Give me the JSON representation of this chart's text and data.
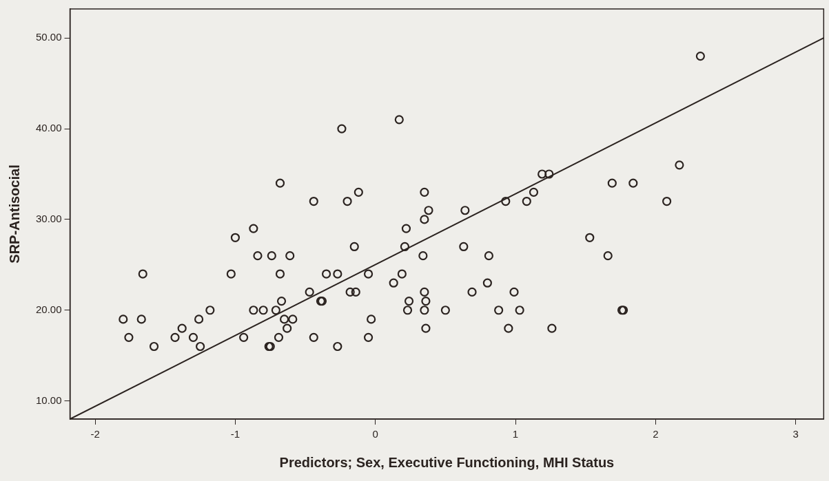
{
  "chart_data": {
    "type": "scatter",
    "xlabel": "Predictors; Sex, Executive Functioning, MHI Status",
    "ylabel": "SRP-Antisocial",
    "xlim": [
      -2.18,
      3.2
    ],
    "xticks": [
      -2,
      -1,
      0,
      1,
      2,
      3
    ],
    "ylim": [
      8,
      53.2
    ],
    "yticks": [
      {
        "value": 10,
        "label": "10.00"
      },
      {
        "value": 20,
        "label": "20.00"
      },
      {
        "value": 30,
        "label": "30.00"
      },
      {
        "value": 40,
        "label": "40.00"
      },
      {
        "value": 50,
        "label": "50.00"
      }
    ],
    "grid": false,
    "legend": false,
    "series": [
      {
        "type": "scatter",
        "marker": "circle",
        "color": "#2b2320",
        "x": [
          2.32,
          0.17,
          -0.24,
          2.17,
          1.19,
          1.24,
          -0.68,
          1.69,
          1.84,
          -0.12,
          0.35,
          1.13,
          -0.44,
          -0.2,
          0.93,
          1.08,
          2.08,
          0.38,
          0.64,
          0.35,
          -0.87,
          0.22,
          -1.0,
          1.53,
          -0.84,
          -0.74,
          -0.61,
          0.34,
          0.81,
          1.66,
          -0.15,
          0.21,
          0.63,
          -1.66,
          -1.03,
          -0.68,
          -0.35,
          -0.27,
          -0.05,
          0.19,
          0.13,
          0.8,
          -0.47,
          -0.18,
          -0.14,
          0.35,
          0.69,
          0.99,
          -0.67,
          -0.39,
          -0.38,
          0.24,
          0.36,
          -1.18,
          -0.87,
          -0.8,
          -0.71,
          0.23,
          0.35,
          0.5,
          0.88,
          1.03,
          1.76,
          1.77,
          -1.8,
          -1.67,
          -1.26,
          -0.65,
          -0.59,
          -0.03,
          -1.38,
          -0.63,
          0.36,
          0.95,
          1.26,
          -1.76,
          -1.43,
          -1.3,
          -0.94,
          -0.69,
          -0.44,
          -0.05,
          -1.58,
          -1.25,
          -0.76,
          -0.75,
          -0.27
        ],
        "values": [
          48,
          41,
          40,
          36,
          35,
          35,
          34,
          34,
          34,
          33,
          33,
          33,
          32,
          32,
          32,
          32,
          32,
          31,
          31,
          30,
          29,
          29,
          28,
          28,
          26,
          26,
          26,
          26,
          26,
          26,
          27,
          27,
          27,
          24,
          24,
          24,
          24,
          24,
          24,
          24,
          23,
          23,
          22,
          22,
          22,
          22,
          22,
          22,
          21,
          21,
          21,
          21,
          21,
          20,
          20,
          20,
          20,
          20,
          20,
          20,
          20,
          20,
          20,
          20,
          19,
          19,
          19,
          19,
          19,
          19,
          18,
          18,
          18,
          18,
          18,
          17,
          17,
          17,
          17,
          17,
          17,
          17,
          16,
          16,
          16,
          16,
          16
        ]
      },
      {
        "type": "line",
        "marker": "none",
        "line_style": "solid",
        "color": "#2b2320",
        "x": [
          -2.18,
          3.2
        ],
        "values": [
          8,
          50
        ]
      }
    ]
  }
}
